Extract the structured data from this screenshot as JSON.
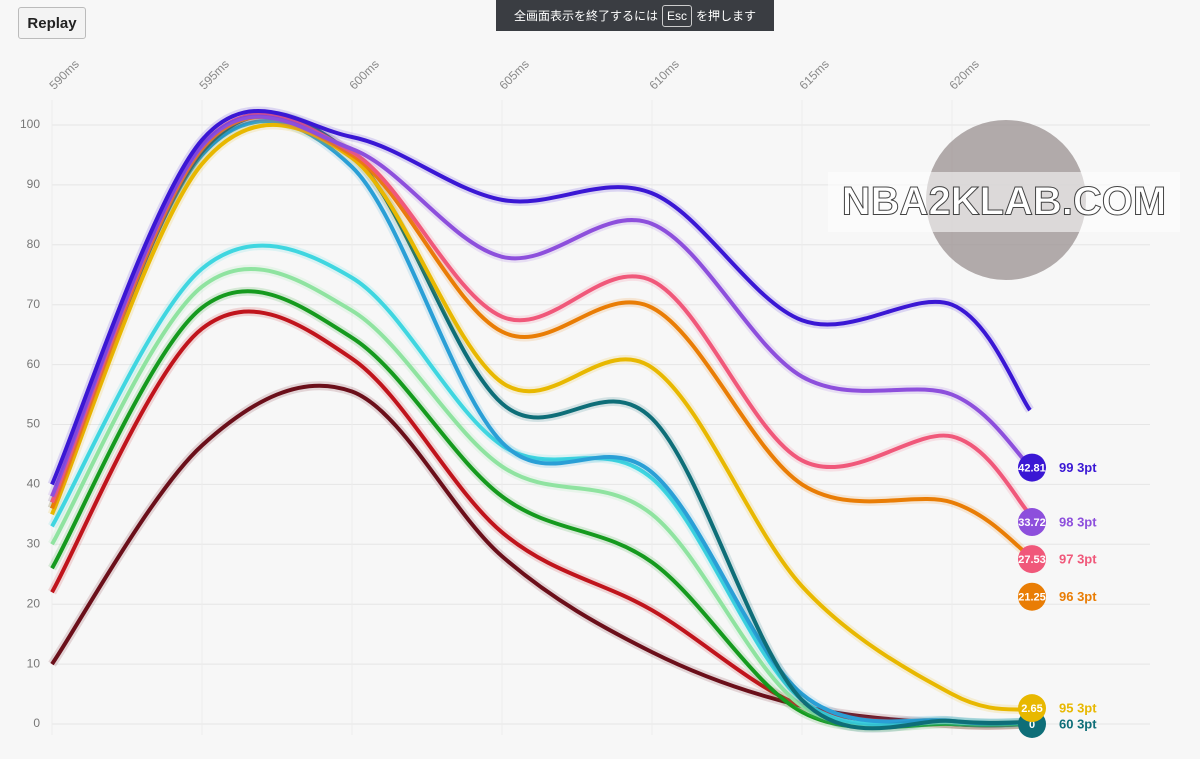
{
  "replay_button": "Replay",
  "fullscreen_notice": {
    "before": "全画面表示を終了するには",
    "key": "Esc",
    "after": "を押します"
  },
  "chart_data": {
    "type": "line",
    "watermark": "NBA2KLAB.COM",
    "x": [
      590,
      595,
      600,
      605,
      610,
      615,
      620,
      622.6
    ],
    "xlim": [
      590,
      625
    ],
    "xticks": [
      {
        "value": 590,
        "label": "590ms"
      },
      {
        "value": 595,
        "label": "595ms"
      },
      {
        "value": 600,
        "label": "600ms"
      },
      {
        "value": 605,
        "label": "605ms"
      },
      {
        "value": 610,
        "label": "610ms"
      },
      {
        "value": 615,
        "label": "615ms"
      },
      {
        "value": 620,
        "label": "620ms"
      }
    ],
    "ylim": [
      0,
      100
    ],
    "yticks": [
      0,
      10,
      20,
      30,
      40,
      50,
      60,
      70,
      80,
      90,
      100
    ],
    "grid": true,
    "series": [
      {
        "color": "#6b0f1a",
        "values": [
          10,
          46.5,
          55.5,
          28,
          12,
          3,
          0,
          0
        ]
      },
      {
        "color": "#c0141c",
        "values": [
          22,
          66,
          61,
          32,
          19,
          3,
          0,
          0
        ]
      },
      {
        "color": "#159a1e",
        "values": [
          26,
          69.5,
          64.5,
          38,
          27,
          2,
          0,
          0
        ]
      },
      {
        "color": "#8fe3a0",
        "values": [
          30,
          73,
          69,
          43,
          35,
          3,
          0.3,
          0.2
        ]
      },
      {
        "color": "#3fd6e0",
        "values": [
          33,
          76,
          74.5,
          46.5,
          41,
          4,
          0.5,
          0.3
        ]
      },
      {
        "color": "#2a9fd6",
        "values": [
          37,
          95,
          93,
          47,
          42,
          5,
          0.5,
          0.3
        ]
      },
      {
        "name": "60 3pt",
        "color": "#0e6e78",
        "values": [
          36,
          95.5,
          95,
          53.5,
          51,
          4,
          0.5,
          0.3
        ],
        "current": 0
      },
      {
        "name": "95 3pt",
        "color": "#e8b800",
        "values": [
          35,
          93.5,
          94.5,
          57,
          59.5,
          23,
          5,
          2.3
        ],
        "current": 2.65
      },
      {
        "name": "96 3pt",
        "color": "#e97d05",
        "values": [
          36,
          96,
          95,
          65.5,
          69.5,
          40,
          37,
          28
        ],
        "current": 21.25
      },
      {
        "name": "97 3pt",
        "color": "#f0587a",
        "values": [
          37,
          96.5,
          95.5,
          68,
          74,
          44,
          48,
          35
        ],
        "current": 27.53
      },
      {
        "name": "98 3pt",
        "color": "#8d4fdc",
        "values": [
          38,
          96.5,
          96,
          78,
          83.5,
          58,
          55,
          43
        ],
        "current": 33.72
      },
      {
        "name": "99 3pt",
        "color": "#3a17d4",
        "values": [
          40,
          97.5,
          98,
          87.5,
          88.6,
          67.4,
          70,
          52.4
        ],
        "current": 42.81
      }
    ]
  }
}
